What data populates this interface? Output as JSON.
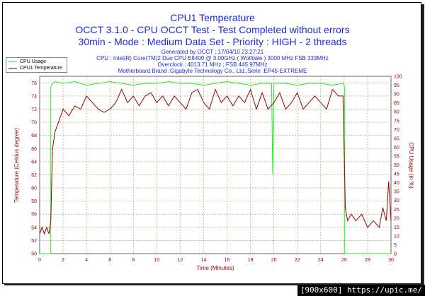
{
  "header": {
    "title": "CPU1 Temperature",
    "subtitle1": "OCCT 3.1.0 - CPU OCCT Test - Test Completed without errors",
    "subtitle2": "30min - Mode : Medium Data Set - Priority : HIGH - 2 threads",
    "info": [
      "Generated by OCCT : 17/04/10 23:27:21",
      "CPU : Intel(R) Core(TM)2 Duo CPU E8400 @ 3.00GHz ( Wolfdale ) 3000 MHz FSB 333MHz",
      "Overclock : 4013.71 MHz ; FSB 445.97MHz",
      "Motherboard Brand :Gigabyte Technology Co., Ltd.,Serie :EP45-EXTREME"
    ]
  },
  "legend": {
    "cpu_usage": "CPU Usage",
    "cpu_temp": "CPU1 Temperature"
  },
  "footer": "[900x600] https://upic.me/",
  "colors": {
    "usage": "#22ee22",
    "temp": "#990000",
    "left_axis": "#8b0000",
    "right_axis": "#8b0000",
    "grid": "#9a9a5a",
    "text_blue": "#1d2bd6"
  },
  "chart_data": {
    "type": "line",
    "title": "CPU1 Temperature",
    "xlabel": "Time (Minutes)",
    "ylabel_left": "Temperature (Celsius degree)",
    "ylabel_right": "CPU Usage (in %)",
    "xlim": [
      0,
      30
    ],
    "ylim_left": [
      50,
      77
    ],
    "ylim_right": [
      0,
      100
    ],
    "x_ticks": [
      0,
      2,
      4,
      6,
      8,
      10,
      12,
      14,
      16,
      18,
      20,
      22,
      24,
      26,
      28,
      30
    ],
    "y_ticks_left": [
      50,
      52,
      54,
      56,
      58,
      60,
      62,
      64,
      66,
      68,
      70,
      72,
      74,
      76
    ],
    "y_ticks_right": [
      0,
      5,
      10,
      15,
      20,
      25,
      30,
      35,
      40,
      45,
      50,
      55,
      60,
      65,
      70,
      75,
      80,
      85,
      90,
      95,
      100
    ],
    "grid": true,
    "legend_position": "top-left",
    "series": [
      {
        "name": "CPU Usage",
        "axis": "right",
        "x": [
          0,
          0.95,
          0.95,
          1.1,
          1.3,
          2,
          3,
          4,
          5,
          6,
          7,
          8,
          9,
          10,
          11,
          12,
          13,
          14,
          15,
          16,
          17,
          18,
          19,
          19.8,
          19.9,
          20,
          20.1,
          21,
          22,
          23,
          24,
          25,
          25.9,
          26.05,
          26.05,
          27,
          28,
          29,
          30
        ],
        "y": [
          0,
          0,
          94,
          96,
          97,
          96,
          97,
          95,
          96,
          97,
          96,
          95,
          96,
          96,
          97,
          96,
          96,
          95,
          96,
          97,
          96,
          95,
          96,
          96,
          45,
          96,
          96,
          96,
          95,
          96,
          96,
          95,
          96,
          94,
          0,
          0,
          0,
          0,
          0
        ]
      },
      {
        "name": "CPU1 Temperature",
        "axis": "left",
        "x": [
          0,
          0.2,
          0.4,
          0.6,
          0.8,
          0.95,
          1.1,
          1.3,
          1.6,
          2,
          2.5,
          3,
          3.5,
          4,
          4.5,
          5,
          5.5,
          6,
          6.5,
          7,
          7.5,
          8,
          8.5,
          9,
          9.5,
          10,
          10.5,
          11,
          11.5,
          12,
          12.5,
          13,
          13.5,
          14,
          14.5,
          15,
          15.5,
          16,
          16.5,
          17,
          17.5,
          18,
          18.5,
          19,
          19.5,
          20,
          20.5,
          21,
          21.5,
          22,
          22.5,
          23,
          23.5,
          24,
          24.5,
          25,
          25.5,
          25.9,
          26.1,
          26.3,
          26.6,
          27,
          27.5,
          28,
          28.5,
          29,
          29.3,
          29.6,
          29.8,
          30
        ],
        "y": [
          53,
          54,
          53,
          54,
          53,
          55,
          66,
          68.5,
          70,
          72,
          71,
          72.5,
          72,
          74,
          73,
          72,
          71.5,
          72,
          73,
          75,
          73,
          74,
          72.5,
          74,
          74.5,
          73,
          74,
          72.5,
          74,
          73,
          72,
          74.5,
          75,
          73,
          72,
          75,
          73,
          74,
          72.5,
          74,
          73,
          75,
          72,
          74.5,
          72,
          73,
          74.5,
          72,
          73,
          74.5,
          72,
          73,
          74,
          73,
          72,
          75,
          74,
          74,
          57,
          55,
          56,
          55,
          56,
          54,
          55,
          54,
          57,
          55,
          61,
          55
        ]
      }
    ]
  }
}
